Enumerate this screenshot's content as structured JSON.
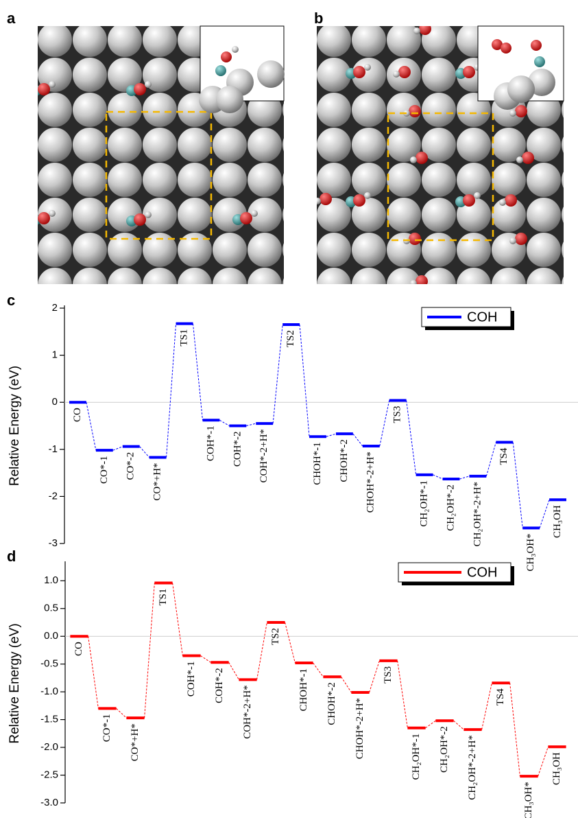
{
  "images": [
    {
      "panel_label": "a"
    },
    {
      "panel_label": "b"
    }
  ],
  "chart_data": [
    {
      "type": "levels",
      "panel_label": "c",
      "ylabel": "Relative Energy (eV)",
      "categories": [
        "CO",
        "CO*-1",
        "CO*-2",
        "CO*+H*",
        "TS1",
        "COH*-1",
        "COH*-2",
        "COH*-2+H*",
        "TS2",
        "CHOH*-1",
        "CHOH*-2",
        "CHOH*-2+H*",
        "TS3",
        "CH₂OH*-1",
        "CH₂OH*-2",
        "CH₂OH*-2+H*",
        "TS4",
        "CH₃OH*",
        "CH₃OH"
      ],
      "series": [
        {
          "name": "COH",
          "color": "#0000ff",
          "values": [
            0,
            -1.02,
            -0.94,
            -1.17,
            1.67,
            -0.38,
            -0.5,
            -0.45,
            1.65,
            -0.73,
            -0.67,
            -0.93,
            0.04,
            -1.54,
            -1.63,
            -1.57,
            -0.85,
            -2.67,
            -2.07
          ]
        }
      ],
      "ylim": [
        -3,
        2
      ],
      "yticks": [
        -3,
        -2,
        -1,
        0,
        1,
        2
      ],
      "zero_line": true,
      "legend": "top-right"
    },
    {
      "type": "levels",
      "panel_label": "d",
      "ylabel": "Relative Energy (eV)",
      "categories": [
        "CO",
        "CO*-1",
        "CO*+H*",
        "TS1",
        "COH*-1",
        "COH*-2",
        "COH*-2+H*",
        "TS2",
        "CHOH*-1",
        "CHOH*-2",
        "CHOH*-2+H*",
        "TS3",
        "CH₂OH*-1",
        "CH₂OH*-2",
        "CH₂OH*-2+H*",
        "TS4",
        "CH₃OH*",
        "CH₃OH"
      ],
      "series": [
        {
          "name": "COH",
          "color": "#ff0000",
          "values": [
            0,
            -1.3,
            -1.47,
            0.96,
            -0.35,
            -0.47,
            -0.78,
            0.25,
            -0.48,
            -0.73,
            -1.01,
            -0.44,
            -1.65,
            -1.52,
            -1.68,
            -0.84,
            -2.52,
            -1.99
          ]
        }
      ],
      "ylim": [
        -3,
        1.3
      ],
      "yticks": [
        {
          "value": -3,
          "label": "-3.0"
        },
        -2.5,
        {
          "value": -2,
          "label": "-2.0"
        },
        -1.5,
        {
          "value": -1,
          "label": "-1.0"
        },
        -0.5,
        {
          "value": 0,
          "label": "0.0"
        },
        0.5,
        {
          "value": 1,
          "label": "1.0"
        }
      ],
      "zero_line": true,
      "legend": "top-right"
    }
  ]
}
